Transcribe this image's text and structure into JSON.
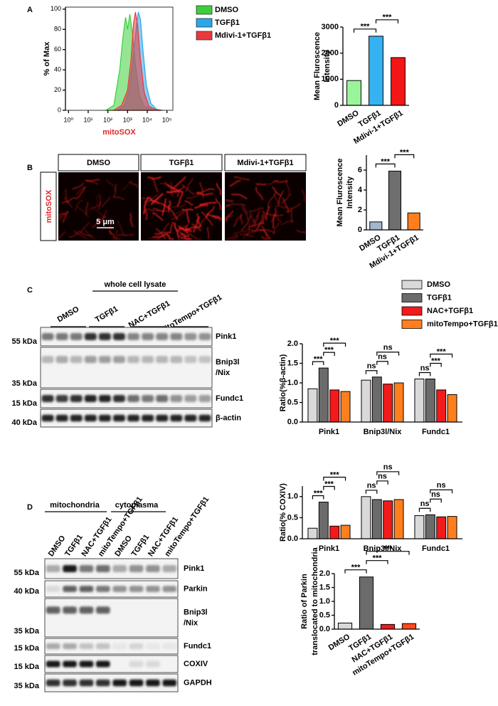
{
  "panel_labels": [
    "A",
    "B",
    "C",
    "D"
  ],
  "chart_data": [
    {
      "type": "area",
      "xscale": "log",
      "ylabel": "% of Max",
      "xlabel": "mitoSOX",
      "xlabel_color": "#e0262b",
      "xlim": [
        0.7,
        200000
      ],
      "ylim": [
        0,
        102
      ],
      "xticks": [
        {
          "value": 1,
          "label": "10⁰"
        },
        {
          "value": 10,
          "label": "10¹"
        },
        {
          "value": 100,
          "label": "10²"
        },
        {
          "value": 1000,
          "label": "10³"
        },
        {
          "value": 10000,
          "label": "10⁴"
        },
        {
          "value": 100000,
          "label": "10⁵"
        }
      ],
      "yticks": [
        0,
        20,
        40,
        60,
        80,
        100
      ],
      "series": [
        {
          "name": "DMSO",
          "color": "#3ccf3c",
          "x": [
            80,
            200,
            400,
            600,
            800,
            1000,
            1300,
            1800,
            2500,
            4000,
            7000,
            15000,
            30000
          ],
          "values": [
            0,
            5,
            40,
            75,
            92,
            80,
            95,
            75,
            45,
            15,
            4,
            1,
            0
          ]
        },
        {
          "name": "TGFβ1",
          "color": "#2aa6ea",
          "x": [
            300,
            700,
            1200,
            2000,
            3000,
            3500,
            4500,
            6000,
            9000,
            15000,
            30000,
            60000
          ],
          "values": [
            0,
            5,
            20,
            55,
            88,
            97,
            90,
            60,
            25,
            7,
            1,
            0
          ]
        },
        {
          "name": "Mdivi-1+TGFβ1",
          "color": "#e8393c",
          "x": [
            200,
            500,
            1000,
            1500,
            2000,
            2500,
            3200,
            4500,
            7000,
            12000,
            25000,
            50000
          ],
          "values": [
            0,
            5,
            20,
            50,
            85,
            97,
            85,
            50,
            18,
            4,
            1,
            0
          ]
        }
      ]
    },
    {
      "type": "bar",
      "ylabel": [
        "Mean Fluroscence",
        "Intensity"
      ],
      "categories": [
        "DMSO",
        "TGFβ1",
        "Mdivi-1+TGFβ1"
      ],
      "values": [
        950,
        2650,
        1830
      ],
      "colors": [
        "#9af59a",
        "#36b2f2",
        "#f21616"
      ],
      "ylim": [
        0,
        3000
      ],
      "yticks": [
        0,
        1000,
        2000,
        3000
      ],
      "significance": [
        {
          "label": "***",
          "from": 0,
          "to": 1
        },
        {
          "label": "***",
          "from": 1,
          "to": 2
        }
      ]
    },
    {
      "type": "bar",
      "ylabel": [
        "Mean Fluroscence",
        "Intensity"
      ],
      "categories": [
        "DMSO",
        "TGFβ1",
        "Mdivi-1+TGFβ1"
      ],
      "values": [
        0.8,
        5.9,
        1.7
      ],
      "colors": [
        "#a3b6cf",
        "#6e6e6e",
        "#ff7f1e"
      ],
      "ylim": [
        0,
        7.5
      ],
      "yticks": [
        0,
        2,
        4,
        6
      ],
      "significance": [
        {
          "label": "***",
          "from": 0,
          "to": 1
        },
        {
          "label": "***",
          "from": 1,
          "to": 2
        }
      ]
    },
    {
      "type": "grouped_bar",
      "ylabel": "Ratio(%β-actin)",
      "categories": [
        "Pink1",
        "Bnip3l/Nix",
        "Fundc1"
      ],
      "ylim": [
        0,
        2.0
      ],
      "yticks": [
        {
          "value": 0,
          "label": "0.0"
        },
        {
          "value": 0.5,
          "label": "0.5"
        },
        {
          "value": 1,
          "label": "1.0"
        },
        {
          "value": 1.5,
          "label": "1.5"
        },
        {
          "value": 2,
          "label": "2.0"
        }
      ],
      "series": [
        {
          "name": "DMSO",
          "color": "#d9d9d9",
          "values": [
            0.85,
            1.07,
            1.1
          ]
        },
        {
          "name": "TGFβ1",
          "color": "#6b6b6b",
          "values": [
            1.38,
            1.15,
            1.1
          ]
        },
        {
          "name": "NAC+TGFβ1",
          "color": "#f21a1a",
          "values": [
            0.82,
            0.97,
            0.82
          ]
        },
        {
          "name": "mitoTempo+TGFβ1",
          "color": "#ff7f1e",
          "values": [
            0.78,
            1.0,
            0.7
          ]
        }
      ],
      "significance": [
        {
          "label": "***",
          "group": 0,
          "from": 0,
          "to": 1
        },
        {
          "label": "***",
          "group": 0,
          "from": 1,
          "to": 2
        },
        {
          "label": "***",
          "group": 0,
          "from": 1,
          "to": 3
        },
        {
          "label": "ns",
          "group": 1,
          "from": 0,
          "to": 1
        },
        {
          "label": "ns",
          "group": 1,
          "from": 1,
          "to": 2
        },
        {
          "label": "ns",
          "group": 1,
          "from": 1,
          "to": 3
        },
        {
          "label": "ns",
          "group": 2,
          "from": 0,
          "to": 1
        },
        {
          "label": "***",
          "group": 2,
          "from": 1,
          "to": 2
        },
        {
          "label": "***",
          "group": 2,
          "from": 1,
          "to": 3
        }
      ]
    },
    {
      "type": "grouped_bar",
      "ylabel": "Ratio(% COXIV)",
      "categories": [
        "Pink1",
        "Bnip3l/Nix",
        "Fundc1"
      ],
      "ylim": [
        0,
        1.25
      ],
      "yticks": [
        {
          "value": 0,
          "label": "0.0"
        },
        {
          "value": 0.5,
          "label": "0.5"
        },
        {
          "value": 1,
          "label": "1.0"
        }
      ],
      "series": [
        {
          "color": "#d9d9d9",
          "values": [
            0.25,
            1.0,
            0.55
          ]
        },
        {
          "color": "#6b6b6b",
          "values": [
            0.87,
            0.93,
            0.57
          ]
        },
        {
          "color": "#f21a1a",
          "values": [
            0.3,
            0.9,
            0.52
          ]
        },
        {
          "color": "#ff7f1e",
          "values": [
            0.32,
            0.93,
            0.53
          ]
        }
      ],
      "significance": [
        {
          "label": "***",
          "group": 0,
          "from": 0,
          "to": 1
        },
        {
          "label": "***",
          "group": 0,
          "from": 1,
          "to": 2
        },
        {
          "label": "***",
          "group": 0,
          "from": 1,
          "to": 3
        },
        {
          "label": "ns",
          "group": 1,
          "from": 0,
          "to": 1
        },
        {
          "label": "ns",
          "group": 1,
          "from": 1,
          "to": 2
        },
        {
          "label": "ns",
          "group": 1,
          "from": 1,
          "to": 3
        },
        {
          "label": "ns",
          "group": 2,
          "from": 0,
          "to": 1
        },
        {
          "label": "ns",
          "group": 2,
          "from": 1,
          "to": 2
        },
        {
          "label": "ns",
          "group": 2,
          "from": 1,
          "to": 3
        }
      ]
    },
    {
      "type": "bar",
      "ylabel": [
        "Ratio of Parkin",
        "translocated to mitochondria"
      ],
      "categories": [
        "DMSO",
        "TGFβ1",
        "NAC+TGFβ1",
        "mitoTempo+TGFβ1"
      ],
      "values": [
        0.22,
        1.88,
        0.17,
        0.2
      ],
      "colors": [
        "#d9d9d9",
        "#6b6b6b",
        "#f21a1a",
        "#ff4a1e"
      ],
      "ylim": [
        0,
        2.0
      ],
      "yticks": [
        {
          "value": 0,
          "label": "0.0"
        },
        {
          "value": 0.5,
          "label": "0.5"
        },
        {
          "value": 1,
          "label": "1.0"
        },
        {
          "value": 1.5,
          "label": "1.5"
        },
        {
          "value": 2,
          "label": "2.0"
        }
      ],
      "significance": [
        {
          "label": "***",
          "from": 0,
          "to": 1
        },
        {
          "label": "***",
          "from": 1,
          "to": 2
        },
        {
          "label": "***",
          "from": 1,
          "to": 3
        }
      ]
    }
  ],
  "panel_b_images": {
    "headers": [
      "DMSO",
      "TGFβ1",
      "Mdivi-1+TGFβ1"
    ],
    "stain": "mitoSOX",
    "scale_bar": "5 μm"
  },
  "panel_c_blot": {
    "title": "whole cell lysate",
    "lanes": [
      "DMSO",
      "TGFβ1",
      "NAC+TGFβ1",
      "mitoTempo+TGFβ1"
    ],
    "rows": [
      {
        "marker": "55 kDa",
        "protein": [
          "Pink1"
        ]
      },
      {
        "marker": "35 kDa",
        "protein": [
          "Bnip3l",
          "/Nix"
        ]
      },
      {
        "marker": "15 kDa",
        "protein": [
          "Fundc1"
        ]
      },
      {
        "marker": "40 kDa",
        "protein": [
          "β-actin"
        ]
      }
    ]
  },
  "panel_d_blot": {
    "fractions": [
      "mitochondria",
      "cytoplasma"
    ],
    "lanes": [
      "DMSO",
      "TGFβ1",
      "NAC+TGFβ1",
      "mitoTempo+TGFβ1",
      "DMSO",
      "TGFβ1",
      "NAC+TGFβ1",
      "mitoTempo+TGFβ1"
    ],
    "rows": [
      {
        "marker": "55 kDa",
        "protein": [
          "Pink1"
        ]
      },
      {
        "marker": "40 kDa",
        "protein": [
          "Parkin"
        ]
      },
      {
        "marker": "35 kDa",
        "protein": [
          "Bnip3l",
          "/Nix"
        ]
      },
      {
        "marker": "15 kDa",
        "protein": [
          "Fundc1"
        ]
      },
      {
        "marker": "15 kDa",
        "protein": [
          "COXIV"
        ]
      },
      {
        "marker": "35 kDa",
        "protein": [
          "GAPDH"
        ]
      }
    ]
  }
}
